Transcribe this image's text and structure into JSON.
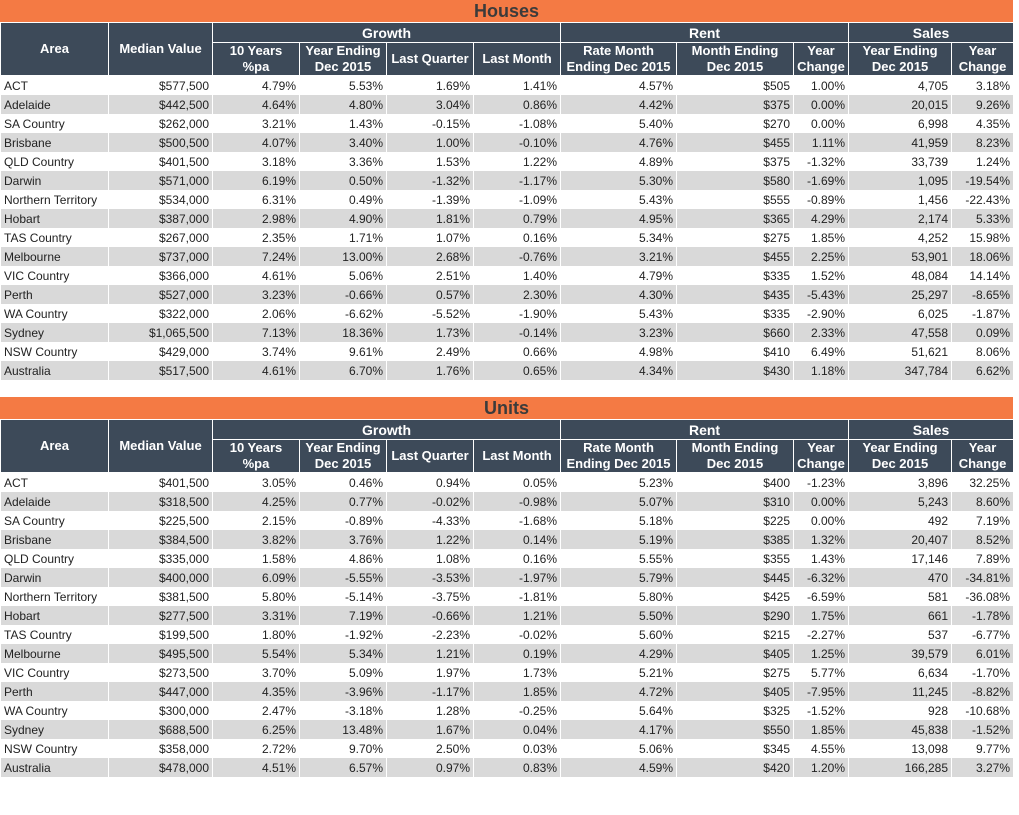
{
  "houses": {
    "title": "Houses",
    "group_headers": {
      "growth": "Growth",
      "rent": "Rent",
      "sales": "Sales"
    },
    "columns": {
      "area": "Area",
      "median": "Median Value",
      "g10": "10 Years %pa",
      "gye": "Year Ending Dec 2015",
      "glq": "Last Quarter",
      "glm": "Last Month",
      "rrate": "Rate Month Ending Dec 2015",
      "rme": "Month Ending Dec 2015",
      "ryc": "Year Change",
      "sye": "Year Ending Dec 2015",
      "syc": "Year Change"
    },
    "rows": [
      [
        "ACT",
        "$577,500",
        "4.79%",
        "5.53%",
        "1.69%",
        "1.41%",
        "4.57%",
        "$505",
        "1.00%",
        "4,705",
        "3.18%"
      ],
      [
        "Adelaide",
        "$442,500",
        "4.64%",
        "4.80%",
        "3.04%",
        "0.86%",
        "4.42%",
        "$375",
        "0.00%",
        "20,015",
        "9.26%"
      ],
      [
        "SA Country",
        "$262,000",
        "3.21%",
        "1.43%",
        "-0.15%",
        "-1.08%",
        "5.40%",
        "$270",
        "0.00%",
        "6,998",
        "4.35%"
      ],
      [
        "Brisbane",
        "$500,500",
        "4.07%",
        "3.40%",
        "1.00%",
        "-0.10%",
        "4.76%",
        "$455",
        "1.11%",
        "41,959",
        "8.23%"
      ],
      [
        "QLD Country",
        "$401,500",
        "3.18%",
        "3.36%",
        "1.53%",
        "1.22%",
        "4.89%",
        "$375",
        "-1.32%",
        "33,739",
        "1.24%"
      ],
      [
        "Darwin",
        "$571,000",
        "6.19%",
        "0.50%",
        "-1.32%",
        "-1.17%",
        "5.30%",
        "$580",
        "-1.69%",
        "1,095",
        "-19.54%"
      ],
      [
        "Northern Territory",
        "$534,000",
        "6.31%",
        "0.49%",
        "-1.39%",
        "-1.09%",
        "5.43%",
        "$555",
        "-0.89%",
        "1,456",
        "-22.43%"
      ],
      [
        "Hobart",
        "$387,000",
        "2.98%",
        "4.90%",
        "1.81%",
        "0.79%",
        "4.95%",
        "$365",
        "4.29%",
        "2,174",
        "5.33%"
      ],
      [
        "TAS Country",
        "$267,000",
        "2.35%",
        "1.71%",
        "1.07%",
        "0.16%",
        "5.34%",
        "$275",
        "1.85%",
        "4,252",
        "15.98%"
      ],
      [
        "Melbourne",
        "$737,000",
        "7.24%",
        "13.00%",
        "2.68%",
        "-0.76%",
        "3.21%",
        "$455",
        "2.25%",
        "53,901",
        "18.06%"
      ],
      [
        "VIC Country",
        "$366,000",
        "4.61%",
        "5.06%",
        "2.51%",
        "1.40%",
        "4.79%",
        "$335",
        "1.52%",
        "48,084",
        "14.14%"
      ],
      [
        "Perth",
        "$527,000",
        "3.23%",
        "-0.66%",
        "0.57%",
        "2.30%",
        "4.30%",
        "$435",
        "-5.43%",
        "25,297",
        "-8.65%"
      ],
      [
        "WA Country",
        "$322,000",
        "2.06%",
        "-6.62%",
        "-5.52%",
        "-1.90%",
        "5.43%",
        "$335",
        "-2.90%",
        "6,025",
        "-1.87%"
      ],
      [
        "Sydney",
        "$1,065,500",
        "7.13%",
        "18.36%",
        "1.73%",
        "-0.14%",
        "3.23%",
        "$660",
        "2.33%",
        "47,558",
        "0.09%"
      ],
      [
        "NSW Country",
        "$429,000",
        "3.74%",
        "9.61%",
        "2.49%",
        "0.66%",
        "4.98%",
        "$410",
        "6.49%",
        "51,621",
        "8.06%"
      ],
      [
        "Australia",
        "$517,500",
        "4.61%",
        "6.70%",
        "1.76%",
        "0.65%",
        "4.34%",
        "$430",
        "1.18%",
        "347,784",
        "6.62%"
      ]
    ]
  },
  "units": {
    "title": "Units",
    "group_headers": {
      "growth": "Growth",
      "rent": "Rent",
      "sales": "Sales"
    },
    "columns": {
      "area": "Area",
      "median": "Median Value",
      "g10": "10 Years %pa",
      "gye": "Year Ending Dec 2015",
      "glq": "Last Quarter",
      "glm": "Last Month",
      "rrate": "Rate Month Ending Dec 2015",
      "rme": "Month Ending Dec 2015",
      "ryc": "Year Change",
      "sye": "Year Ending Dec 2015",
      "syc": "Year Change"
    },
    "rows": [
      [
        "ACT",
        "$401,500",
        "3.05%",
        "0.46%",
        "0.94%",
        "0.05%",
        "5.23%",
        "$400",
        "-1.23%",
        "3,896",
        "32.25%"
      ],
      [
        "Adelaide",
        "$318,500",
        "4.25%",
        "0.77%",
        "-0.02%",
        "-0.98%",
        "5.07%",
        "$310",
        "0.00%",
        "5,243",
        "8.60%"
      ],
      [
        "SA Country",
        "$225,500",
        "2.15%",
        "-0.89%",
        "-4.33%",
        "-1.68%",
        "5.18%",
        "$225",
        "0.00%",
        "492",
        "7.19%"
      ],
      [
        "Brisbane",
        "$384,500",
        "3.82%",
        "3.76%",
        "1.22%",
        "0.14%",
        "5.19%",
        "$385",
        "1.32%",
        "20,407",
        "8.52%"
      ],
      [
        "QLD Country",
        "$335,000",
        "1.58%",
        "4.86%",
        "1.08%",
        "0.16%",
        "5.55%",
        "$355",
        "1.43%",
        "17,146",
        "7.89%"
      ],
      [
        "Darwin",
        "$400,000",
        "6.09%",
        "-5.55%",
        "-3.53%",
        "-1.97%",
        "5.79%",
        "$445",
        "-6.32%",
        "470",
        "-34.81%"
      ],
      [
        "Northern Territory",
        "$381,500",
        "5.80%",
        "-5.14%",
        "-3.75%",
        "-1.81%",
        "5.80%",
        "$425",
        "-6.59%",
        "581",
        "-36.08%"
      ],
      [
        "Hobart",
        "$277,500",
        "3.31%",
        "7.19%",
        "-0.66%",
        "1.21%",
        "5.50%",
        "$290",
        "1.75%",
        "661",
        "-1.78%"
      ],
      [
        "TAS Country",
        "$199,500",
        "1.80%",
        "-1.92%",
        "-2.23%",
        "-0.02%",
        "5.60%",
        "$215",
        "-2.27%",
        "537",
        "-6.77%"
      ],
      [
        "Melbourne",
        "$495,500",
        "5.54%",
        "5.34%",
        "1.21%",
        "0.19%",
        "4.29%",
        "$405",
        "1.25%",
        "39,579",
        "6.01%"
      ],
      [
        "VIC Country",
        "$273,500",
        "3.70%",
        "5.09%",
        "1.97%",
        "1.73%",
        "5.21%",
        "$275",
        "5.77%",
        "6,634",
        "-1.70%"
      ],
      [
        "Perth",
        "$447,000",
        "4.35%",
        "-3.96%",
        "-1.17%",
        "1.85%",
        "4.72%",
        "$405",
        "-7.95%",
        "11,245",
        "-8.82%"
      ],
      [
        "WA Country",
        "$300,000",
        "2.47%",
        "-3.18%",
        "1.28%",
        "-0.25%",
        "5.64%",
        "$325",
        "-1.52%",
        "928",
        "-10.68%"
      ],
      [
        "Sydney",
        "$688,500",
        "6.25%",
        "13.48%",
        "1.67%",
        "0.04%",
        "4.17%",
        "$550",
        "1.85%",
        "45,838",
        "-1.52%"
      ],
      [
        "NSW Country",
        "$358,000",
        "2.72%",
        "9.70%",
        "2.50%",
        "0.03%",
        "5.06%",
        "$345",
        "4.55%",
        "13,098",
        "9.77%"
      ],
      [
        "Australia",
        "$478,000",
        "4.51%",
        "6.57%",
        "0.97%",
        "0.83%",
        "4.59%",
        "$420",
        "1.20%",
        "166,285",
        "3.27%"
      ]
    ]
  }
}
